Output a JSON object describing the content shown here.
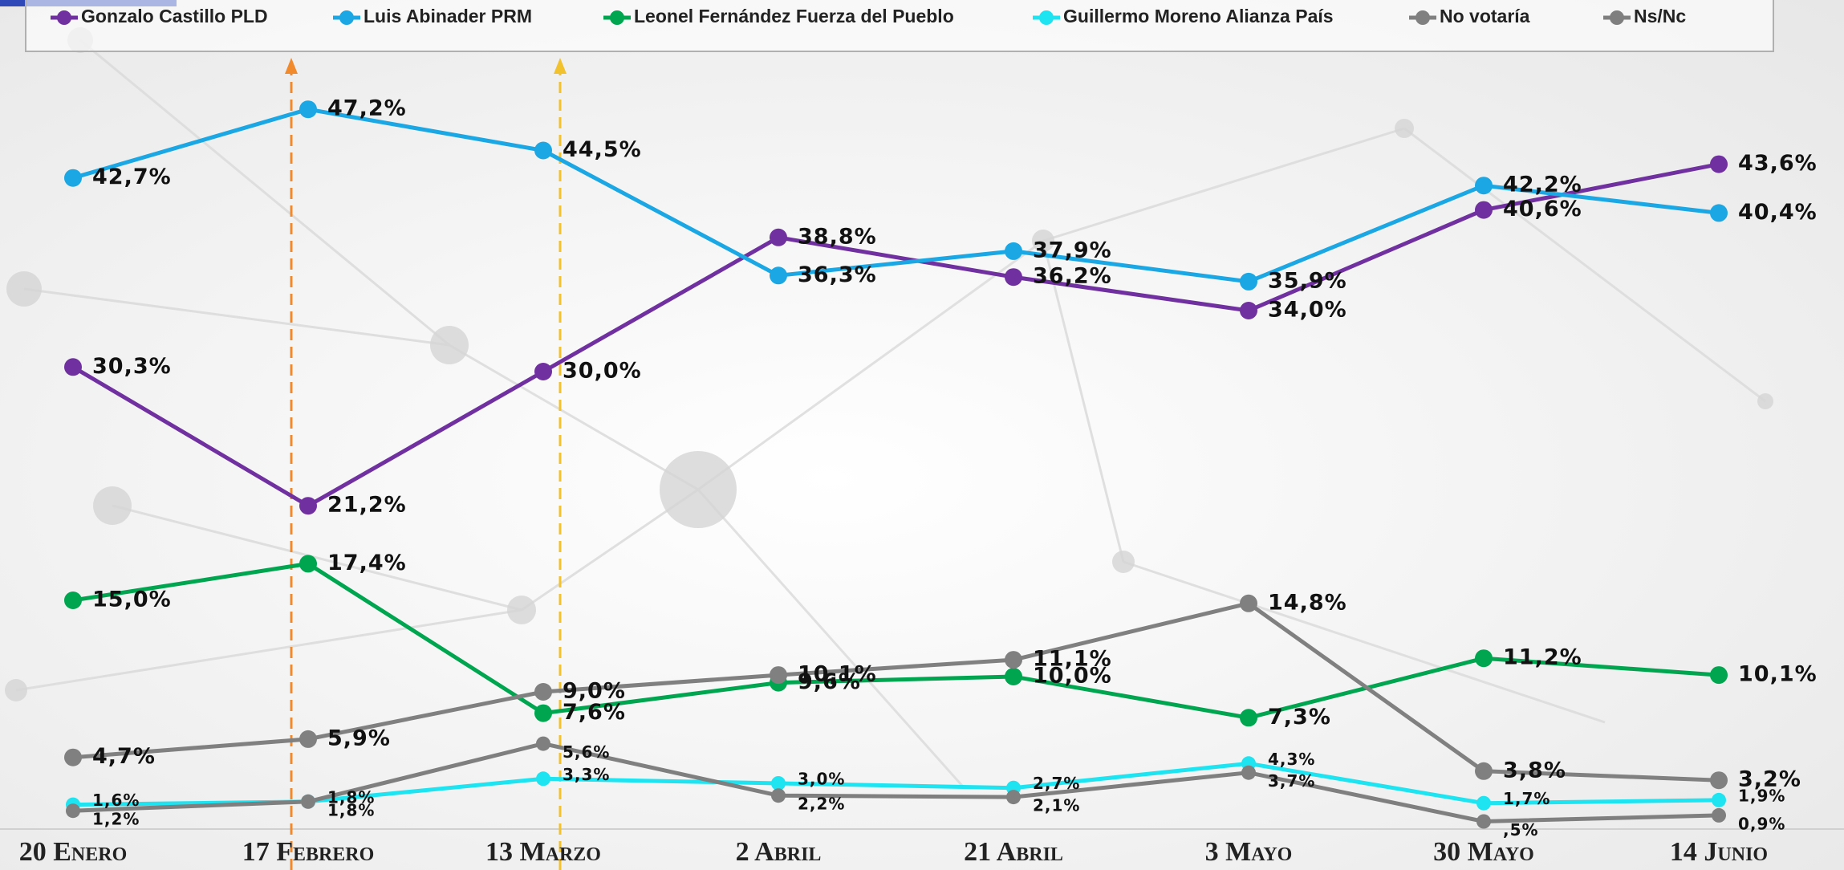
{
  "chart_data": {
    "type": "line",
    "categories": [
      "20 Enero",
      "17 Febrero",
      "13 Marzo",
      "2 Abril",
      "21 Abril",
      "3 Mayo",
      "30 Mayo",
      "14 Junio"
    ],
    "series": [
      {
        "name": "Gonzalo Castillo PLD",
        "color": "#7030a0",
        "values": [
          30.3,
          21.2,
          30.0,
          38.8,
          36.2,
          34.0,
          40.6,
          43.6
        ],
        "value_labels": [
          "30,3%",
          "21,2%",
          "30,0%",
          "38,8%",
          "36,2%",
          "34,0%",
          "40,6%",
          "43,6%"
        ]
      },
      {
        "name": "Luis Abinader PRM",
        "color": "#1aa7e4",
        "values": [
          42.7,
          47.2,
          44.5,
          36.3,
          37.9,
          35.9,
          42.2,
          40.4
        ],
        "value_labels": [
          "42,7%",
          "47,2%",
          "44,5%",
          "36,3%",
          "37,9%",
          "35,9%",
          "42,2%",
          "40,4%"
        ]
      },
      {
        "name": "Leonel Fernández Fuerza del Pueblo",
        "color": "#00a550",
        "values": [
          15.0,
          17.4,
          7.6,
          9.6,
          10.0,
          7.3,
          11.2,
          10.1
        ],
        "value_labels": [
          "15,0%",
          "17,4%",
          "7,6%",
          "9,6%",
          "10,0%",
          "7,3%",
          "11,2%",
          "10,1%"
        ]
      },
      {
        "name": "Guillermo Moreno Alianza País",
        "color": "#1ee3f0",
        "values": [
          1.6,
          1.8,
          3.3,
          3.0,
          2.7,
          4.3,
          1.7,
          1.9
        ],
        "value_labels": [
          "1,6%",
          "1,8%",
          "3,3%",
          "3,0%",
          "2,7%",
          "4,3%",
          "1,7%",
          "1,9%"
        ]
      },
      {
        "name": "No votaría",
        "color": "#808080",
        "values": [
          4.7,
          5.9,
          9.0,
          10.1,
          11.1,
          14.8,
          3.8,
          3.2
        ],
        "value_labels": [
          "4,7%",
          "5,9%",
          "9,0%",
          "10,1%",
          "11,1%",
          "14,8%",
          "3,8%",
          "3,2%"
        ]
      },
      {
        "name": "Ns/Nc",
        "color": "#7f7f7f",
        "values": [
          1.2,
          1.8,
          5.6,
          2.2,
          2.1,
          3.7,
          0.5,
          0.9
        ],
        "value_labels": [
          "1,2%",
          "1,8%",
          "5,6%",
          "2,2%",
          "2,1%",
          "3,7%",
          ",5%",
          "0,9%"
        ]
      }
    ],
    "ylim": [
      0,
      50
    ],
    "legend": "top",
    "markers": true
  }
}
